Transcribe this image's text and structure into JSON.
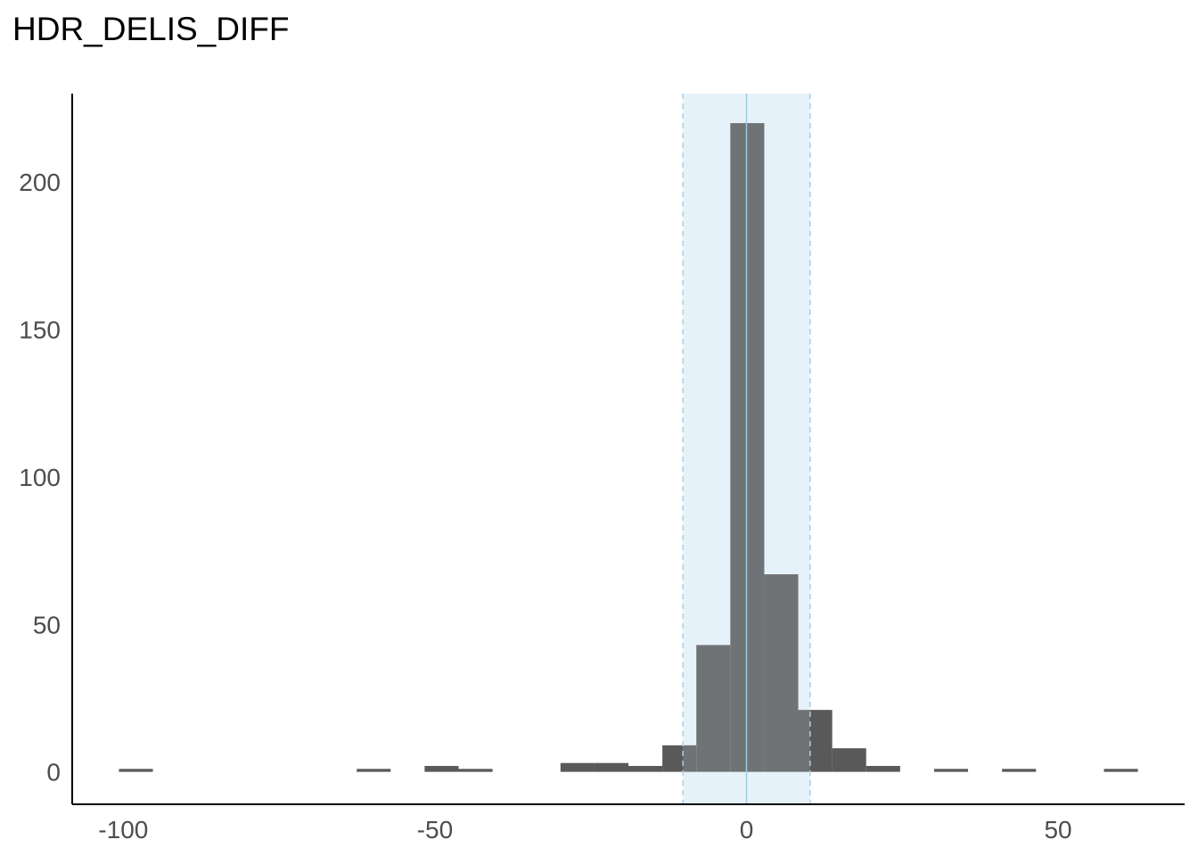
{
  "chart_data": {
    "type": "bar",
    "title": "HDR_DELIS_DIFF",
    "xlabel": "",
    "ylabel": "",
    "xlim": [
      -108.2,
      70.3
    ],
    "ylim": [
      -11,
      230
    ],
    "x_ticks": [
      -100,
      -50,
      0,
      50
    ],
    "x_tick_labels": [
      "-100",
      "-50",
      "0",
      "50"
    ],
    "y_ticks": [
      0,
      50,
      100,
      150,
      200
    ],
    "y_tick_labels": [
      "0",
      "50",
      "100",
      "150",
      "200"
    ],
    "bin_width": 5.45,
    "bins": [
      {
        "start": -100.7,
        "count": 1
      },
      {
        "start": -62.55,
        "count": 1
      },
      {
        "start": -51.65,
        "count": 2
      },
      {
        "start": -46.2,
        "count": 1
      },
      {
        "start": -29.85,
        "count": 3
      },
      {
        "start": -24.4,
        "count": 3
      },
      {
        "start": -18.95,
        "count": 2
      },
      {
        "start": -13.5,
        "count": 9
      },
      {
        "start": -8.05,
        "count": 43
      },
      {
        "start": -2.6,
        "count": 220
      },
      {
        "start": 2.85,
        "count": 67
      },
      {
        "start": 8.3,
        "count": 21
      },
      {
        "start": 13.75,
        "count": 8
      },
      {
        "start": 19.2,
        "count": 2
      },
      {
        "start": 30.1,
        "count": 1
      },
      {
        "start": 41.0,
        "count": 1
      },
      {
        "start": 57.35,
        "count": 1
      }
    ],
    "reference_band": {
      "from": -10.2,
      "to": 10.2,
      "color": "#d6e9f8"
    },
    "center_line": {
      "value": 0,
      "color": "#9ecae1"
    },
    "bar_color": "#595959",
    "grid": false,
    "legend": "none"
  }
}
